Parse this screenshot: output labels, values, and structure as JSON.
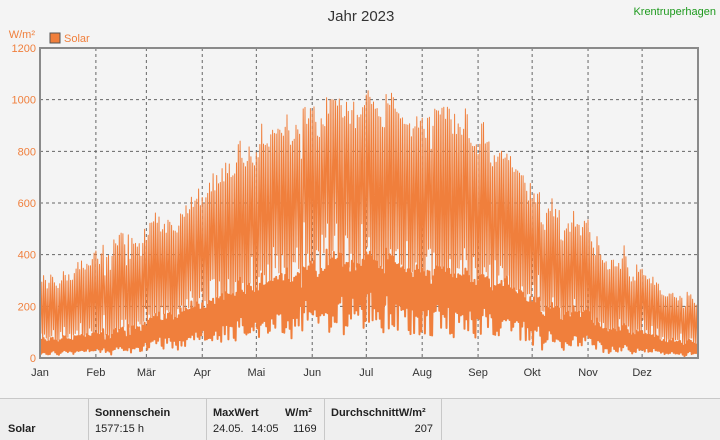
{
  "station_name": "Krentruperhagen",
  "footer": {
    "series_label": "Solar",
    "sunshine_label": "Sonnenschein",
    "sunshine_value": "1577:15 h",
    "max_label": "MaxWert",
    "max_unit": "W/m²",
    "max_date": "24.05.",
    "max_time": "14:05",
    "max_value": "1169",
    "avg_label": "DurchschnittW/m²",
    "avg_value": "207"
  },
  "colors": {
    "series": "#f07f3c",
    "axis_text": "#f07f3c",
    "grid": "#666666",
    "frame": "#888888",
    "plot_bg": "#f4f4f4"
  },
  "chart_data": {
    "type": "line",
    "title": "Jahr 2023",
    "ylabel": "W/m²",
    "xlabel": "",
    "ylim": [
      0,
      1200
    ],
    "yticks": [
      0,
      200,
      400,
      600,
      800,
      1000,
      1200
    ],
    "xlim": [
      0,
      365
    ],
    "month_labels": [
      "Jan",
      "Feb",
      "Mär",
      "Apr",
      "Mai",
      "Jun",
      "Jul",
      "Aug",
      "Sep",
      "Okt",
      "Nov",
      "Dez"
    ],
    "grid": true,
    "legend": "top-left",
    "series": [
      {
        "name": "Solar",
        "envelope": {
          "month_centers_day": [
            15,
            45,
            74,
            105,
            135,
            166,
            196,
            227,
            258,
            288,
            319,
            349
          ],
          "daily_max_peak": [
            380,
            560,
            620,
            880,
            1000,
            1100,
            1120,
            1080,
            880,
            650,
            480,
            300
          ],
          "daily_max_base": [
            90,
            120,
            250,
            360,
            450,
            520,
            520,
            450,
            380,
            220,
            120,
            80
          ],
          "daily_mean_peak": [
            100,
            140,
            230,
            320,
            370,
            450,
            450,
            400,
            340,
            240,
            160,
            90
          ],
          "daily_mean_base": [
            15,
            25,
            60,
            110,
            160,
            200,
            200,
            170,
            130,
            70,
            35,
            15
          ]
        }
      }
    ]
  }
}
